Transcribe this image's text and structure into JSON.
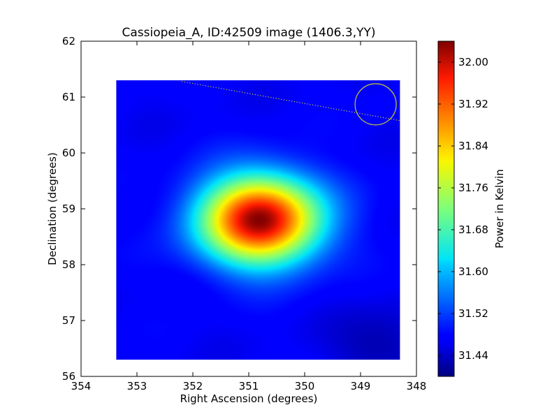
{
  "chart_data": {
    "type": "heatmap",
    "title": "Cassiopeia_A, ID:42509 image (1406.3,YY)",
    "xlabel": "Right Ascension (degrees)",
    "ylabel": "Declination (degrees)",
    "xlim": [
      354,
      348
    ],
    "ylim": [
      56,
      62
    ],
    "x_ticks": [
      "354",
      "353",
      "352",
      "351",
      "350",
      "349",
      "348"
    ],
    "y_ticks": [
      "62",
      "61",
      "60",
      "59",
      "58",
      "57",
      "56"
    ],
    "image_extent": {
      "ra": [
        353.37,
        348.3
      ],
      "dec": [
        56.3,
        61.3
      ]
    },
    "source_peak": {
      "ra": 350.8,
      "dec": 58.8,
      "value": 32.03
    },
    "background_level": 31.47,
    "colormap": "jet",
    "colorbar": {
      "label": "Power in Kelvin",
      "range": [
        31.4,
        32.04
      ],
      "ticks": [
        "32.00",
        "31.92",
        "31.84",
        "31.76",
        "31.68",
        "31.60",
        "31.52",
        "31.44"
      ],
      "tick_values": [
        32.0,
        31.92,
        31.84,
        31.76,
        31.68,
        31.6,
        31.52,
        31.44
      ]
    },
    "beam_circle": {
      "ra": 348.73,
      "dec": 60.87,
      "color": "#cccc33"
    },
    "dotted_line": {
      "from": {
        "ra": 352.2,
        "dec": 61.28
      },
      "to": {
        "ra": 348.3,
        "dec": 60.58
      },
      "color": "#cccc33"
    },
    "grid": false
  }
}
